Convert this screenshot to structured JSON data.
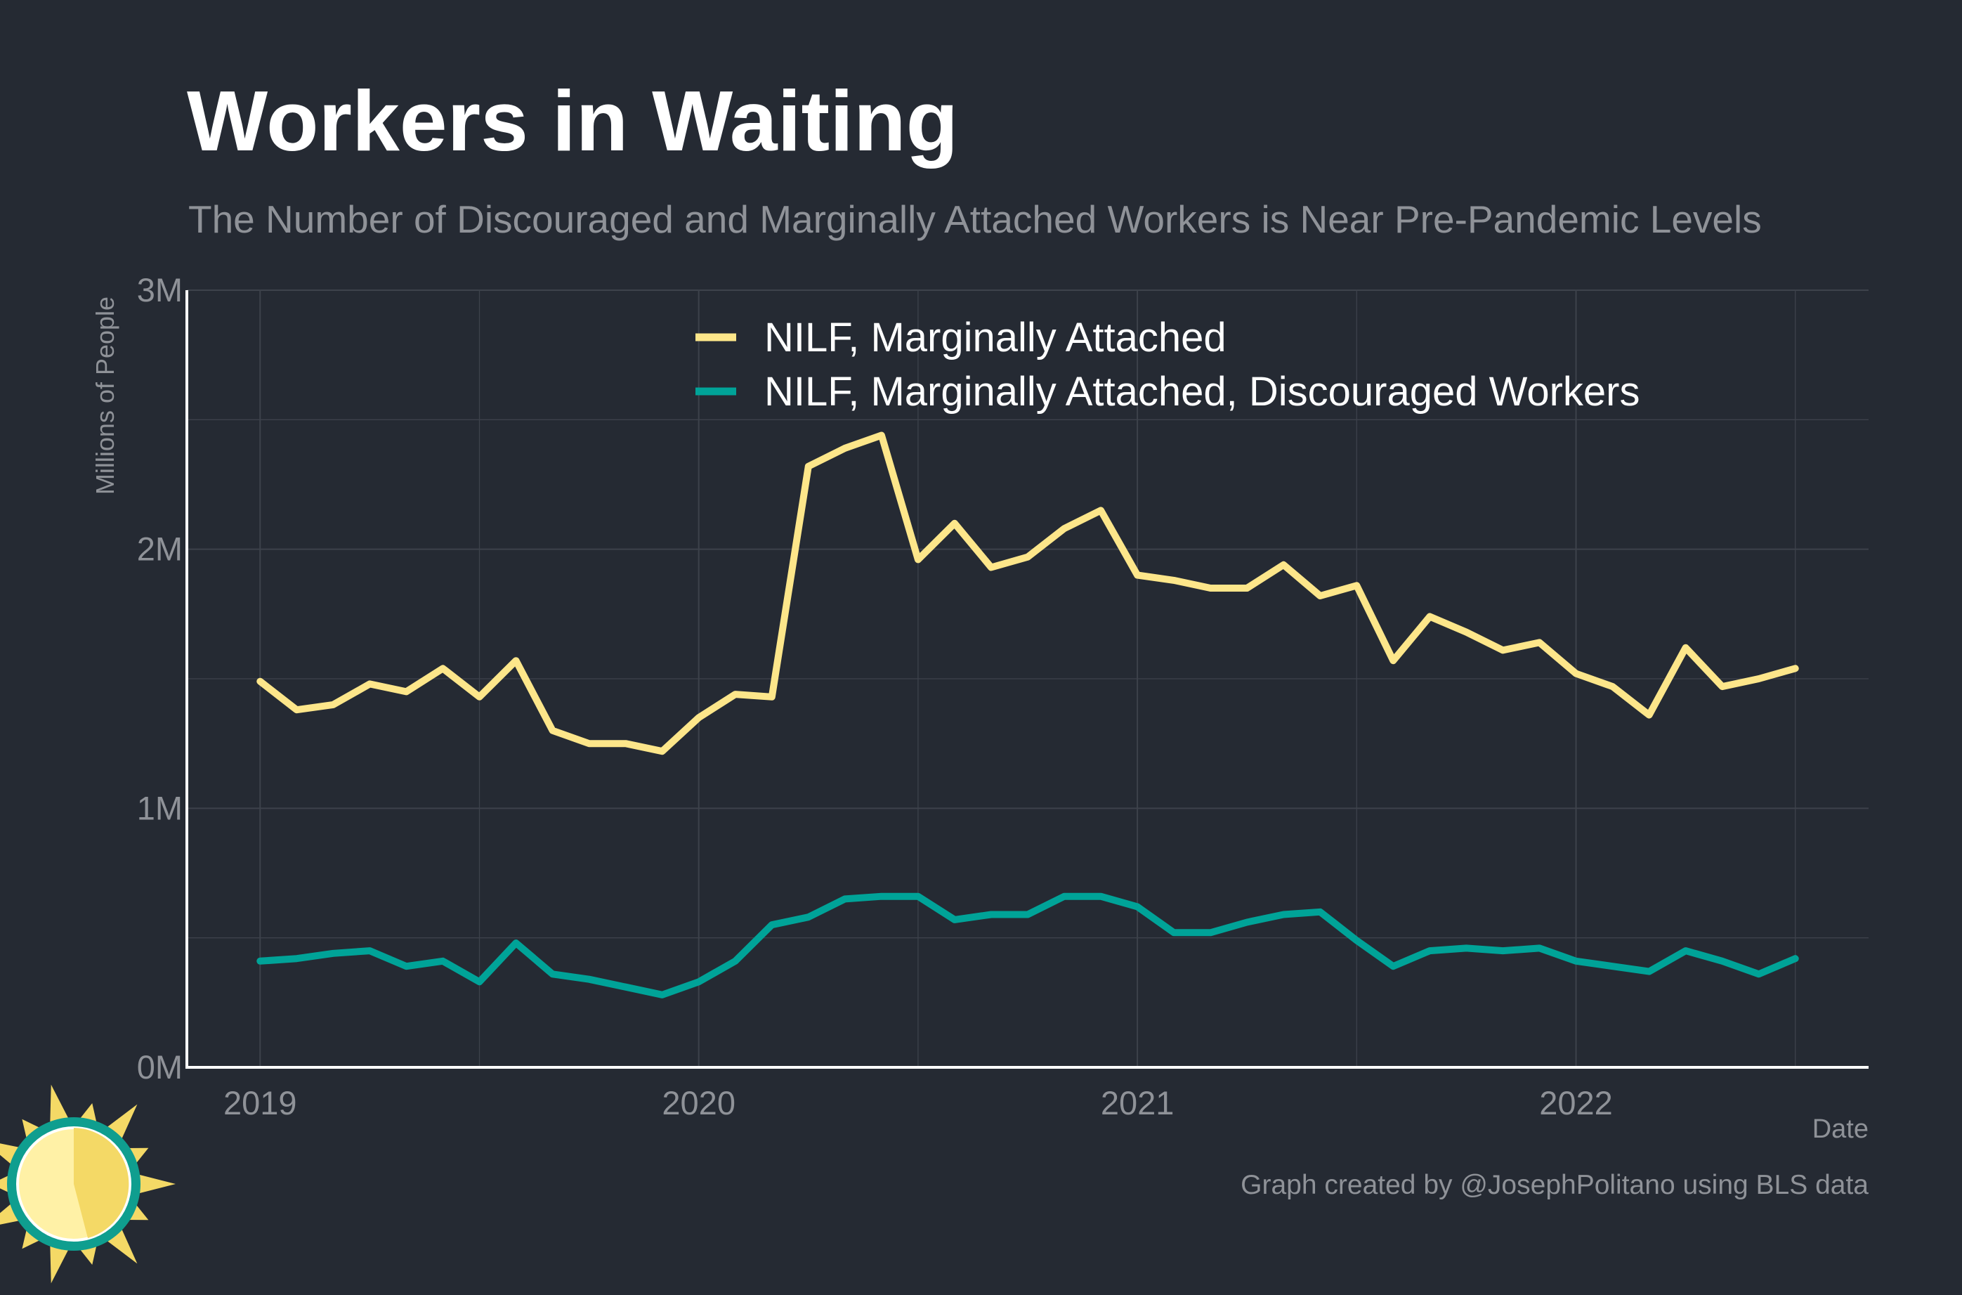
{
  "chart_data": {
    "type": "line",
    "title": "Workers in Waiting",
    "subtitle": "The Number of Discouraged and Marginally Attached Workers is Near Pre-Pandemic Levels",
    "xlabel": "Date",
    "ylabel": "Millions of People",
    "ylim": [
      0,
      3
    ],
    "y_ticks": [
      0,
      1,
      2,
      3
    ],
    "y_tick_labels": [
      "0M",
      "1M",
      "2M",
      "3M"
    ],
    "x_range": [
      2018.833,
      2022.667
    ],
    "x_ticks": [
      2019,
      2020,
      2021,
      2022
    ],
    "x_tick_labels": [
      "2019",
      "2020",
      "2021",
      "2022"
    ],
    "x_start": 2019,
    "x_step_months": 1,
    "caption": "Graph created by @JosephPolitano using BLS data",
    "legend_position": "top-center",
    "series": [
      {
        "name": "NILF, Marginally Attached",
        "color": "#fde68a",
        "values": [
          1.49,
          1.38,
          1.4,
          1.48,
          1.45,
          1.54,
          1.43,
          1.57,
          1.3,
          1.25,
          1.25,
          1.22,
          1.35,
          1.44,
          1.43,
          2.32,
          2.39,
          2.44,
          1.96,
          2.1,
          1.93,
          1.97,
          2.08,
          2.15,
          1.9,
          1.88,
          1.85,
          1.85,
          1.94,
          1.82,
          1.86,
          1.57,
          1.74,
          1.68,
          1.61,
          1.64,
          1.52,
          1.47,
          1.36,
          1.62,
          1.47,
          1.5,
          1.54
        ]
      },
      {
        "name": "NILF, Marginally Attached, Discouraged Workers",
        "color": "#00a398",
        "values": [
          0.41,
          0.42,
          0.44,
          0.45,
          0.39,
          0.41,
          0.33,
          0.48,
          0.36,
          0.34,
          0.31,
          0.28,
          0.33,
          0.41,
          0.55,
          0.58,
          0.65,
          0.66,
          0.66,
          0.57,
          0.59,
          0.59,
          0.66,
          0.66,
          0.62,
          0.52,
          0.52,
          0.56,
          0.59,
          0.6,
          0.49,
          0.39,
          0.45,
          0.46,
          0.45,
          0.46,
          0.41,
          0.39,
          0.37,
          0.45,
          0.41,
          0.36,
          0.42
        ]
      }
    ]
  },
  "colors": {
    "background": "#252a33",
    "grid": "#3d424b",
    "axis": "#ffffff",
    "muted_text": "#8f9298"
  },
  "logo": {
    "name": "sun-logo-icon"
  }
}
